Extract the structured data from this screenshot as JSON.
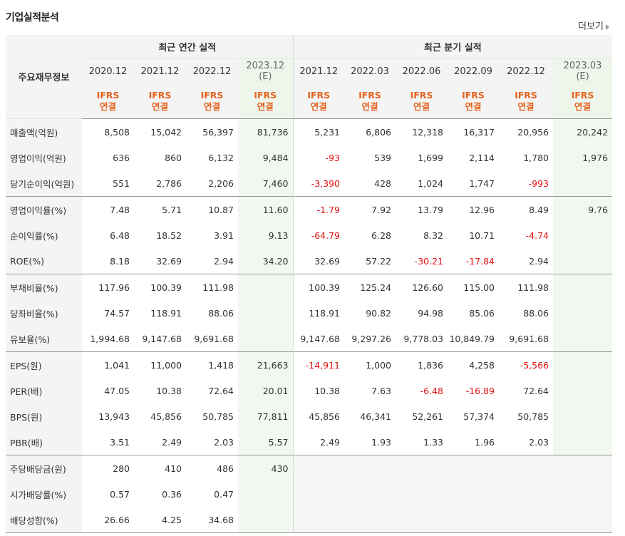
{
  "section_title": "기업실적분석",
  "more_label": "더보기",
  "header": {
    "row_header_label": "주요재무정보",
    "annual_group": "최근 연간 실적",
    "quarter_group": "최근 분기 실적",
    "annual_periods": [
      "2020.12",
      "2021.12",
      "2022.12",
      "2023.12"
    ],
    "annual_estimate_flag": [
      false,
      false,
      false,
      true
    ],
    "quarter_periods": [
      "2021.12",
      "2022.03",
      "2022.06",
      "2022.09",
      "2022.12",
      "2023.03"
    ],
    "quarter_estimate_flag": [
      false,
      false,
      false,
      false,
      false,
      true
    ],
    "estimate_mark": "(E)",
    "ifrs_label": "IFRS",
    "consolidated_label": "연결"
  },
  "colors": {
    "negative": "#e31010",
    "ifrs": "#e5621e",
    "estimate_bg": "#f1f8ef",
    "header_bg": "#f4f4f4"
  },
  "rows": [
    {
      "label": "매출액(억원)",
      "values": [
        "8,508",
        "15,042",
        "56,397",
        "81,736",
        "5,231",
        "6,806",
        "12,318",
        "16,317",
        "20,956",
        "20,242"
      ]
    },
    {
      "label": "영업이익(억원)",
      "values": [
        "636",
        "860",
        "6,132",
        "9,484",
        "-93",
        "539",
        "1,699",
        "2,114",
        "1,780",
        "1,976"
      ]
    },
    {
      "label": "당기순이익(억원)",
      "values": [
        "551",
        "2,786",
        "2,206",
        "7,460",
        "-3,390",
        "428",
        "1,024",
        "1,747",
        "-993",
        ""
      ]
    },
    {
      "label": "영업이익률(%)",
      "values": [
        "7.48",
        "5.71",
        "10.87",
        "11.60",
        "-1.79",
        "7.92",
        "13.79",
        "12.96",
        "8.49",
        "9.76"
      ]
    },
    {
      "label": "순이익률(%)",
      "values": [
        "6.48",
        "18.52",
        "3.91",
        "9.13",
        "-64.79",
        "6.28",
        "8.32",
        "10.71",
        "-4.74",
        ""
      ]
    },
    {
      "label": "ROE(%)",
      "values": [
        "8.18",
        "32.69",
        "2.94",
        "34.20",
        "32.69",
        "57.22",
        "-30.21",
        "-17.84",
        "2.94",
        ""
      ]
    },
    {
      "label": "부채비율(%)",
      "values": [
        "117.96",
        "100.39",
        "111.98",
        "",
        "100.39",
        "125.24",
        "126.60",
        "115.00",
        "111.98",
        ""
      ]
    },
    {
      "label": "당좌비율(%)",
      "values": [
        "74.57",
        "118.91",
        "88.06",
        "",
        "118.91",
        "90.82",
        "94.98",
        "85.06",
        "88.06",
        ""
      ]
    },
    {
      "label": "유보율(%)",
      "values": [
        "1,994.68",
        "9,147.68",
        "9,691.68",
        "",
        "9,147.68",
        "9,297.26",
        "9,778.03",
        "10,849.79",
        "9,691.68",
        ""
      ]
    },
    {
      "label": "EPS(원)",
      "values": [
        "1,041",
        "11,000",
        "1,418",
        "21,663",
        "-14,911",
        "1,000",
        "1,836",
        "4,258",
        "-5,566",
        ""
      ]
    },
    {
      "label": "PER(배)",
      "values": [
        "47.05",
        "10.38",
        "72.64",
        "20.01",
        "10.38",
        "7.63",
        "-6.48",
        "-16.89",
        "72.64",
        ""
      ]
    },
    {
      "label": "BPS(원)",
      "values": [
        "13,943",
        "45,856",
        "50,785",
        "77,811",
        "45,856",
        "46,341",
        "52,261",
        "57,374",
        "50,785",
        ""
      ]
    },
    {
      "label": "PBR(배)",
      "values": [
        "3.51",
        "2.49",
        "2.03",
        "5.57",
        "2.49",
        "1.93",
        "1.33",
        "1.96",
        "2.03",
        ""
      ]
    },
    {
      "label": "주당배당금(원)",
      "values": [
        "280",
        "410",
        "486",
        "430",
        "",
        "",
        "",
        "",
        "",
        ""
      ]
    },
    {
      "label": "시가배당률(%)",
      "values": [
        "0.57",
        "0.36",
        "0.47",
        "",
        "",
        "",
        "",
        "",
        "",
        ""
      ]
    },
    {
      "label": "배당성향(%)",
      "values": [
        "26.66",
        "4.25",
        "34.68",
        "",
        "",
        "",
        "",
        "",
        "",
        ""
      ]
    }
  ]
}
